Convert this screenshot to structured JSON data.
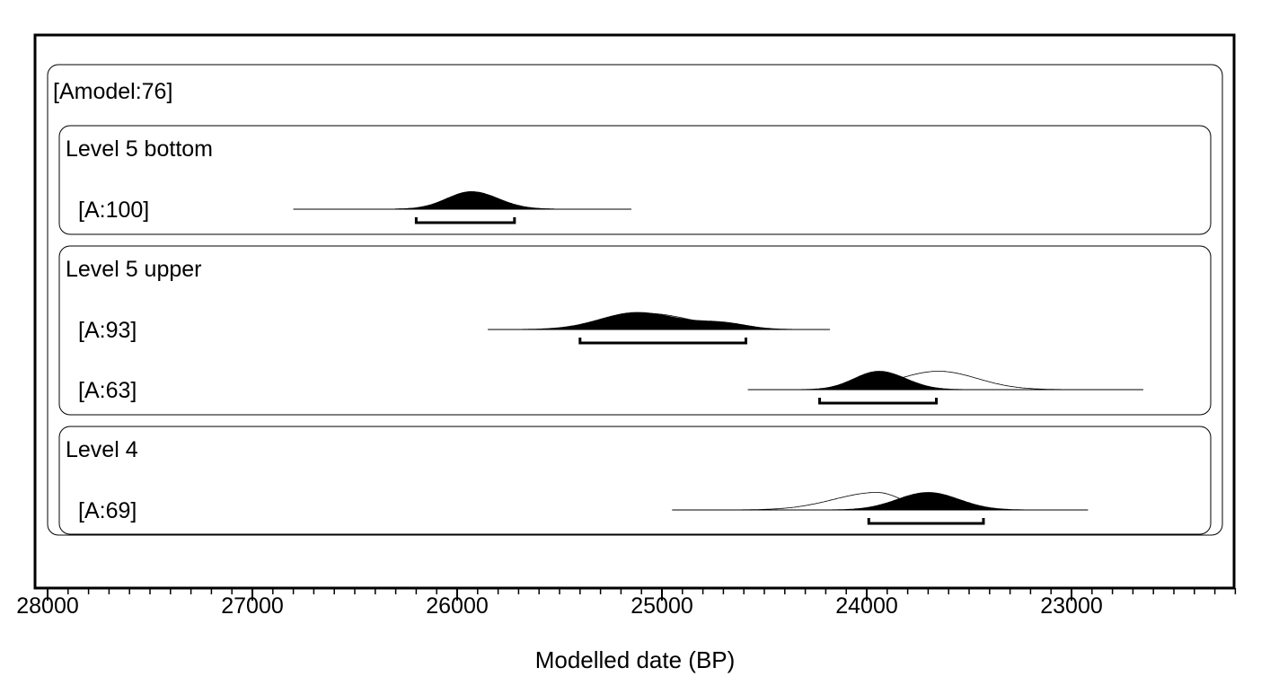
{
  "chart_data": {
    "type": "area",
    "title": "",
    "xlabel": "Modelled date (BP)",
    "ylabel": "",
    "xlim": [
      28000,
      22200
    ],
    "x_reversed": true,
    "x_ticks": [
      28000,
      27000,
      26000,
      25000,
      24000,
      23000
    ],
    "x_minor_step": 100,
    "grid": false,
    "model": {
      "label": "[Amodel:76]"
    },
    "groups": [
      {
        "name": "Level 5 bottom",
        "items": [
          {
            "label": "[A:100]",
            "agreement": 100,
            "range_95": [
              26200,
              25720
            ],
            "support": [
              26800,
              25150
            ],
            "prior": {
              "peak": 25930,
              "sd_old": 120,
              "sd_young": 130,
              "height": 0.78
            },
            "posterior": {
              "peak": 25930,
              "sd_old": 120,
              "sd_young": 130,
              "height": 0.78
            }
          }
        ]
      },
      {
        "name": "Level 5 upper",
        "items": [
          {
            "label": "[A:93]",
            "agreement": 93,
            "range_95": [
              25400,
              24590
            ],
            "support": [
              25850,
              24180
            ],
            "prior": {
              "peak": 25080,
              "sd_old": 170,
              "sd_young": 220,
              "height": 0.72
            },
            "posterior": {
              "peak": 25120,
              "sd_old": 180,
              "sd_young": 200,
              "height": 0.76,
              "shoulder": {
                "peak": 24700,
                "sd": 120,
                "height": 0.25
              }
            }
          },
          {
            "label": "[A:63]",
            "agreement": 63,
            "range_95": [
              24230,
              23660
            ],
            "support": [
              24580,
              22650
            ],
            "prior": {
              "peak": 23650,
              "sd_old": 190,
              "sd_young": 190,
              "height": 0.82
            },
            "posterior": {
              "peak": 23940,
              "sd_old": 120,
              "sd_young": 130,
              "height": 0.82
            }
          }
        ]
      },
      {
        "name": "Level 4",
        "items": [
          {
            "label": "[A:69]",
            "agreement": 69,
            "range_95": [
              23990,
              23430
            ],
            "support": [
              24950,
              22920
            ],
            "prior": {
              "peak": 23950,
              "sd_old": 210,
              "sd_young": 120,
              "height": 0.78
            },
            "posterior": {
              "peak": 23700,
              "sd_old": 150,
              "sd_young": 150,
              "height": 0.78
            }
          }
        ]
      }
    ]
  }
}
